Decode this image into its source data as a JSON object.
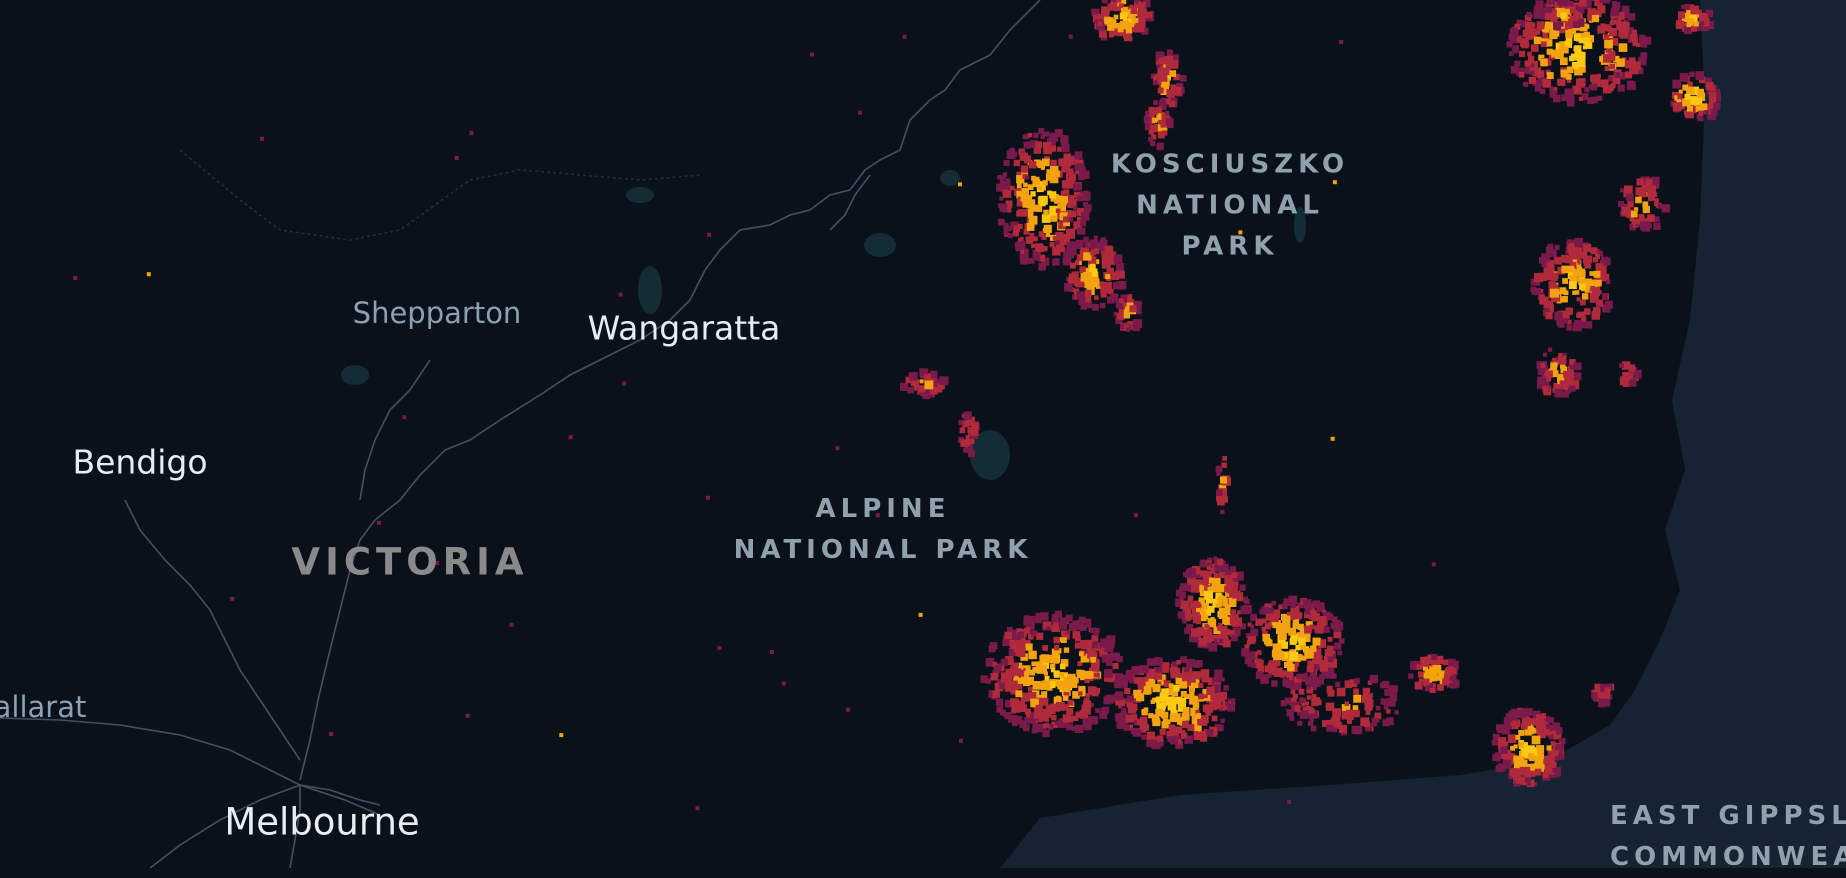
{
  "map": {
    "theme": "dark",
    "colors": {
      "land": "#0b111b",
      "sea": "#152332",
      "roads": "#566676",
      "water": "#16303d",
      "fire_low": "#7a1a4a",
      "fire_mid": "#b02a3c",
      "fire_high": "#f2a30f",
      "fire_peak": "#ffc812"
    },
    "labels": {
      "melbourne": "Melbourne",
      "wangaratta": "Wangaratta",
      "bendigo": "Bendigo",
      "shepparton": "Shepparton",
      "ballarat": "allarat",
      "victoria": "VICTORIA",
      "alpine": [
        "ALPINE",
        "NATIONAL PARK"
      ],
      "kosciuszko": [
        "KOSCIUSZKO",
        "NATIONAL",
        "PARK"
      ],
      "east_gippsland": [
        "EAST GIPPSLA",
        "COMMONWEA"
      ]
    },
    "layers": [
      "roads",
      "water",
      "fire-hotspots"
    ]
  }
}
